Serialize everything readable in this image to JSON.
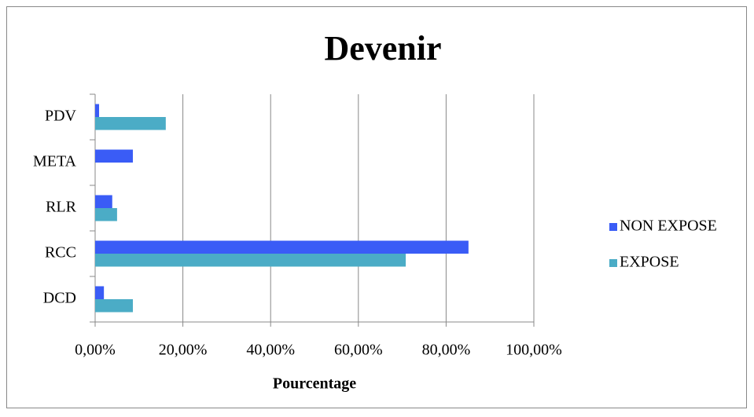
{
  "chart_data": {
    "type": "bar",
    "orientation": "horizontal",
    "title": "Devenir",
    "x_label": "Pourcentage",
    "categories": [
      "PDV",
      "META",
      "RLR",
      "RCC",
      "DCD"
    ],
    "series": [
      {
        "name": "NON EXPOSE",
        "color": "#3a5cf6",
        "values": [
          0.9,
          8.6,
          3.9,
          85.1,
          2.0
        ]
      },
      {
        "name": "EXPOSE",
        "color": "#4bacc6",
        "values": [
          16.1,
          0,
          5.0,
          70.8,
          8.6
        ]
      }
    ],
    "xlim": [
      0,
      100
    ],
    "xticks": [
      {
        "value": 0,
        "label": "0,00%"
      },
      {
        "value": 20,
        "label": "20,00%"
      },
      {
        "value": 40,
        "label": "40,00%"
      },
      {
        "value": 60,
        "label": "60,00%"
      },
      {
        "value": 80,
        "label": "80,00%"
      },
      {
        "value": 100,
        "label": "100,00%"
      }
    ],
    "grid": true,
    "legend": "right"
  }
}
